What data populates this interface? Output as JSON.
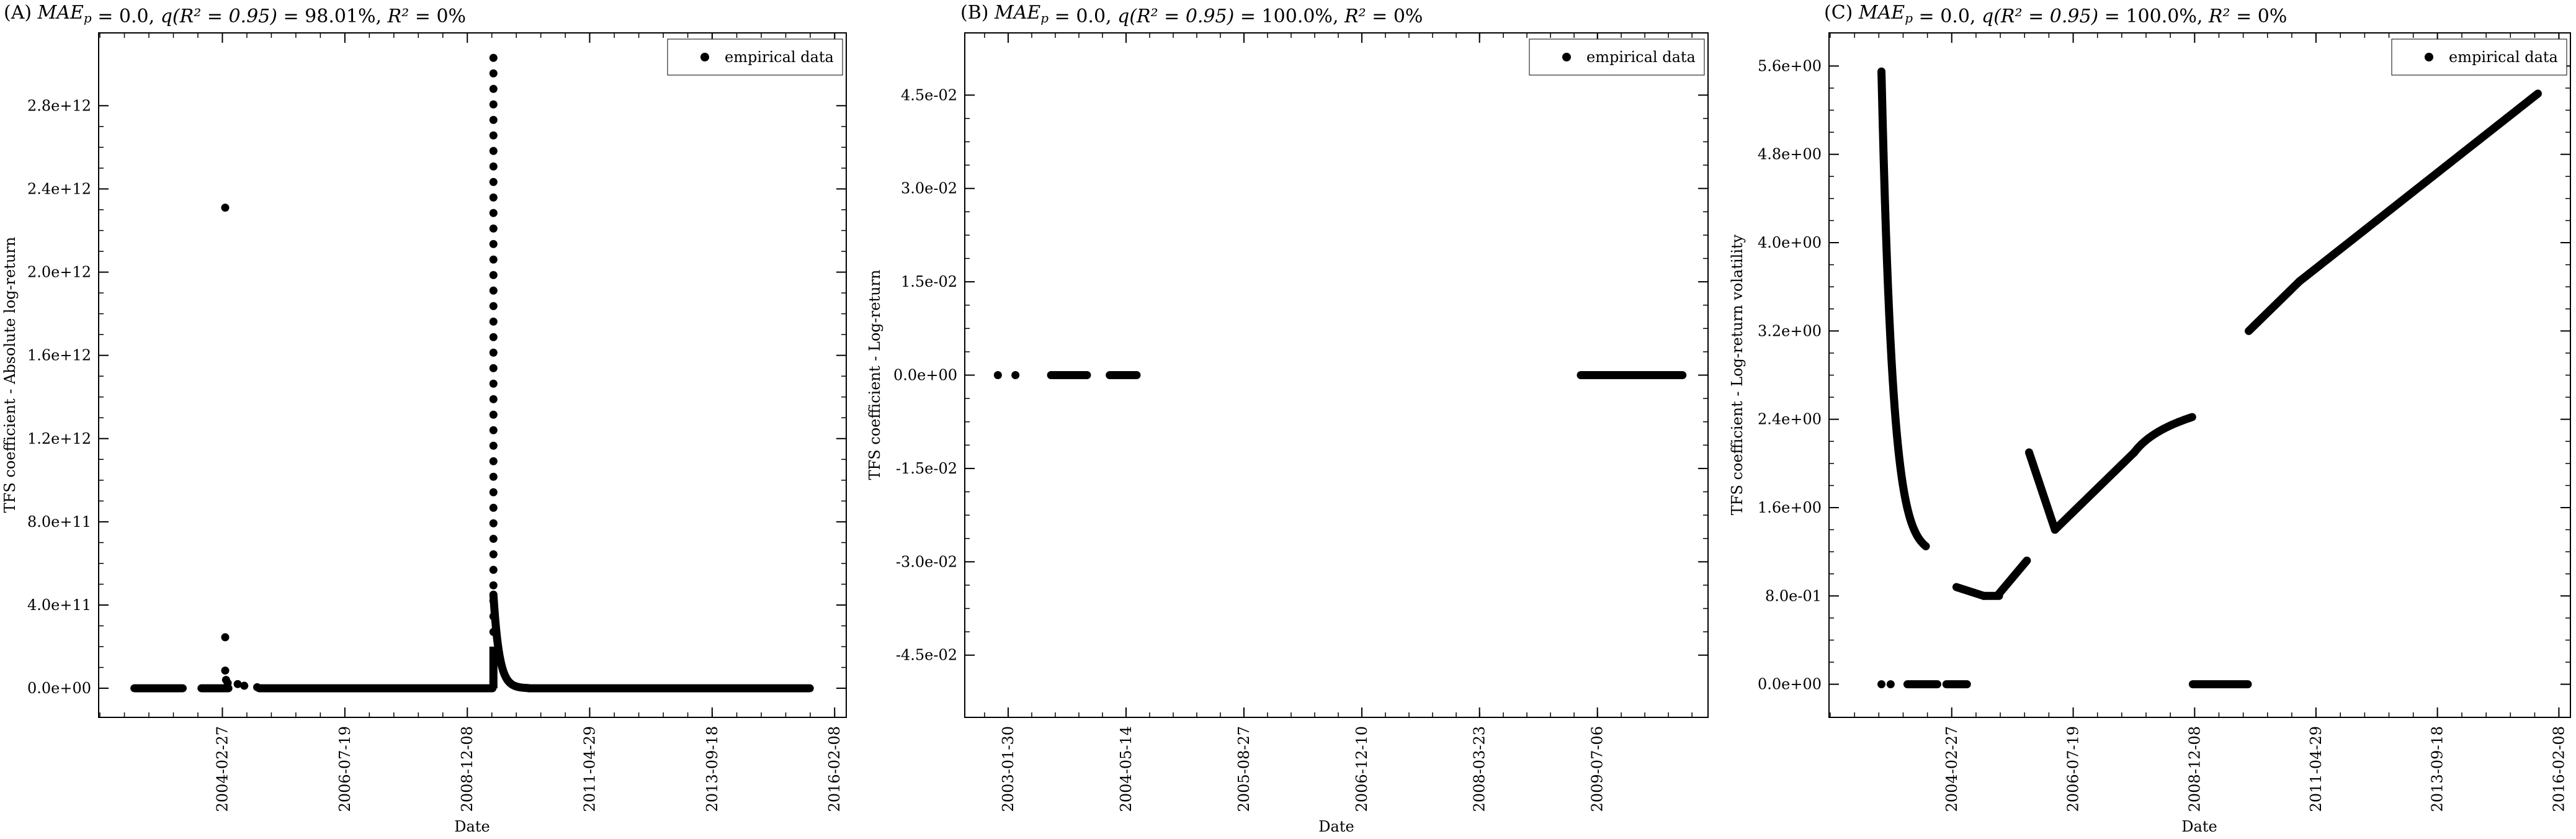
{
  "chart_data": [
    {
      "type": "scatter",
      "title": "(A) MAE_p = 0.0, q(R² = 0.95) = 98.01%, R² = 0%",
      "xlabel": "Date",
      "ylabel": "TFS coefficient - Absolute log-return",
      "legend": {
        "position": "top-right",
        "entries": [
          "empirical data"
        ]
      },
      "x_ticks": [
        "2004-02-27",
        "2006-07-19",
        "2008-12-08",
        "2011-04-29",
        "2013-09-18",
        "2016-02-08"
      ],
      "y_ticks": [
        "0.0e+00",
        "4.0e+11",
        "8.0e+11",
        "1.2e+12",
        "1.6e+12",
        "2.0e+12",
        "2.4e+12",
        "2.8e+12"
      ],
      "xlim": [
        "2001-09-28",
        "2016-05-01"
      ],
      "ylim": [
        -140000000000.0,
        3150000000000.0
      ],
      "series": [
        {
          "points": [
            {
              "type": "hline",
              "x1": "2002-06-10",
              "x2": "2003-05-20",
              "y": 0
            },
            {
              "type": "hline",
              "x1": "2003-10-01",
              "x2": "2004-04-10",
              "y": 0
            },
            {
              "type": "pt",
              "x": "2004-03-18",
              "y": 2310000000000.0
            },
            {
              "type": "pt",
              "x": "2004-03-18",
              "y": 245000000000.0
            },
            {
              "type": "pt",
              "x": "2004-03-18",
              "y": 85000000000.0
            },
            {
              "type": "pt",
              "x": "2004-03-24",
              "y": 40000000000.0
            },
            {
              "type": "pt",
              "x": "2004-04-05",
              "y": 25000000000.0
            },
            {
              "type": "pt",
              "x": "2004-06-15",
              "y": 20000000000.0
            },
            {
              "type": "pt",
              "x": "2004-08-01",
              "y": 12000000000.0
            },
            {
              "type": "pt",
              "x": "2004-11-01",
              "y": 5000000000.0
            },
            {
              "type": "hline",
              "x1": "2004-11-15",
              "x2": "2009-06-05",
              "y": 0
            },
            {
              "type": "vcol",
              "x": "2009-06-12",
              "y1": 200000000000.0,
              "y2": 3030000000000.0
            },
            {
              "type": "decay",
              "x1": "2009-06-12",
              "x2": "2010-02-15",
              "y1": 450000000000.0,
              "y2": 1000000000.0
            },
            {
              "type": "hline",
              "x1": "2010-02-15",
              "x2": "2015-08-15",
              "y": 0
            }
          ]
        }
      ]
    },
    {
      "type": "scatter",
      "title": "(B) MAE_p = 0.0, q(R² = 0.95) = 100.0%, R² = 0%",
      "xlabel": "Date",
      "ylabel": "TFS coefficient - Log-return",
      "legend": {
        "position": "top-right",
        "entries": [
          "empirical data"
        ]
      },
      "x_ticks": [
        "2003-01-30",
        "2004-05-14",
        "2005-08-27",
        "2006-12-10",
        "2008-03-23",
        "2009-07-06"
      ],
      "y_ticks": [
        "-4.5e-02",
        "-3.0e-02",
        "-1.5e-02",
        "0.0e+00",
        "1.5e-02",
        "3.0e-02",
        "4.5e-02"
      ],
      "xlim": [
        "2002-08-10",
        "2010-09-20"
      ],
      "ylim": [
        -0.055,
        0.055
      ],
      "series": [
        {
          "points": [
            {
              "type": "pt",
              "x": "2002-12-20",
              "y": 0
            },
            {
              "type": "pt",
              "x": "2003-02-28",
              "y": 0
            },
            {
              "type": "hline",
              "x1": "2003-07-20",
              "x2": "2003-12-10",
              "y": 0
            },
            {
              "type": "hline",
              "x1": "2004-03-10",
              "x2": "2004-06-25",
              "y": 0
            },
            {
              "type": "hline",
              "x1": "2009-05-01",
              "x2": "2010-06-10",
              "y": 0
            }
          ]
        }
      ]
    },
    {
      "type": "scatter",
      "title": "(C) MAE_p = 0.0, q(R² = 0.95) = 100.0%, R² = 0%",
      "xlabel": "Date",
      "ylabel": "TFS coefficient - Log-return volatility",
      "legend": {
        "position": "top-right",
        "entries": [
          "empirical data"
        ]
      },
      "x_ticks": [
        "2004-02-27",
        "2006-07-19",
        "2008-12-08",
        "2011-04-29",
        "2013-09-18",
        "2016-02-08"
      ],
      "y_ticks": [
        "0.0e+00",
        "8.0e-01",
        "1.6e+00",
        "2.4e+00",
        "3.2e+00",
        "4.0e+00",
        "4.8e+00",
        "5.6e+00"
      ],
      "xlim": [
        "2001-09-28",
        "2016-05-01"
      ],
      "ylim": [
        -0.3,
        5.9
      ],
      "series": [
        {
          "points": [
            {
              "type": "pt",
              "x": "2002-10-10",
              "y": 0
            },
            {
              "type": "pt",
              "x": "2002-12-15",
              "y": 0
            },
            {
              "type": "hline",
              "x1": "2003-04-15",
              "x2": "2003-11-15",
              "y": 0
            },
            {
              "type": "hline",
              "x1": "2004-01-20",
              "x2": "2004-06-15",
              "y": 0
            },
            {
              "type": "curve",
              "x1": "2002-10-10",
              "x2": "2003-08-25",
              "y1": 5.55,
              "y2": 1.25,
              "shape": "exp",
              "k": 4
            },
            {
              "type": "curve",
              "x1": "2004-04-01",
              "x2": "2004-10-15",
              "y1": 0.88,
              "y2": 0.8,
              "shape": "lin"
            },
            {
              "type": "curve",
              "x1": "2004-10-15",
              "x2": "2005-02-01",
              "y1": 0.8,
              "y2": 0.8,
              "shape": "lin"
            },
            {
              "type": "curve",
              "x1": "2005-02-01",
              "x2": "2005-08-20",
              "y1": 0.82,
              "y2": 1.12,
              "shape": "lin"
            },
            {
              "type": "curve",
              "x1": "2005-09-05",
              "x2": "2006-03-10",
              "y1": 2.1,
              "y2": 1.4,
              "shape": "lin"
            },
            {
              "type": "curve",
              "x1": "2006-03-10",
              "x2": "2007-10-01",
              "y1": 1.4,
              "y2": 2.1,
              "shape": "lin"
            },
            {
              "type": "curve",
              "x1": "2007-10-01",
              "x2": "2008-11-20",
              "y1": 2.1,
              "y2": 2.42,
              "shape": "log"
            },
            {
              "type": "hline",
              "x1": "2008-11-25",
              "x2": "2009-12-25",
              "y": 0
            },
            {
              "type": "curve",
              "x1": "2010-01-01",
              "x2": "2011-01-01",
              "y1": 3.2,
              "y2": 3.65,
              "shape": "lin"
            },
            {
              "type": "curve",
              "x1": "2011-01-01",
              "x2": "2015-09-10",
              "y1": 3.65,
              "y2": 5.35,
              "shape": "lin"
            }
          ]
        }
      ]
    }
  ]
}
